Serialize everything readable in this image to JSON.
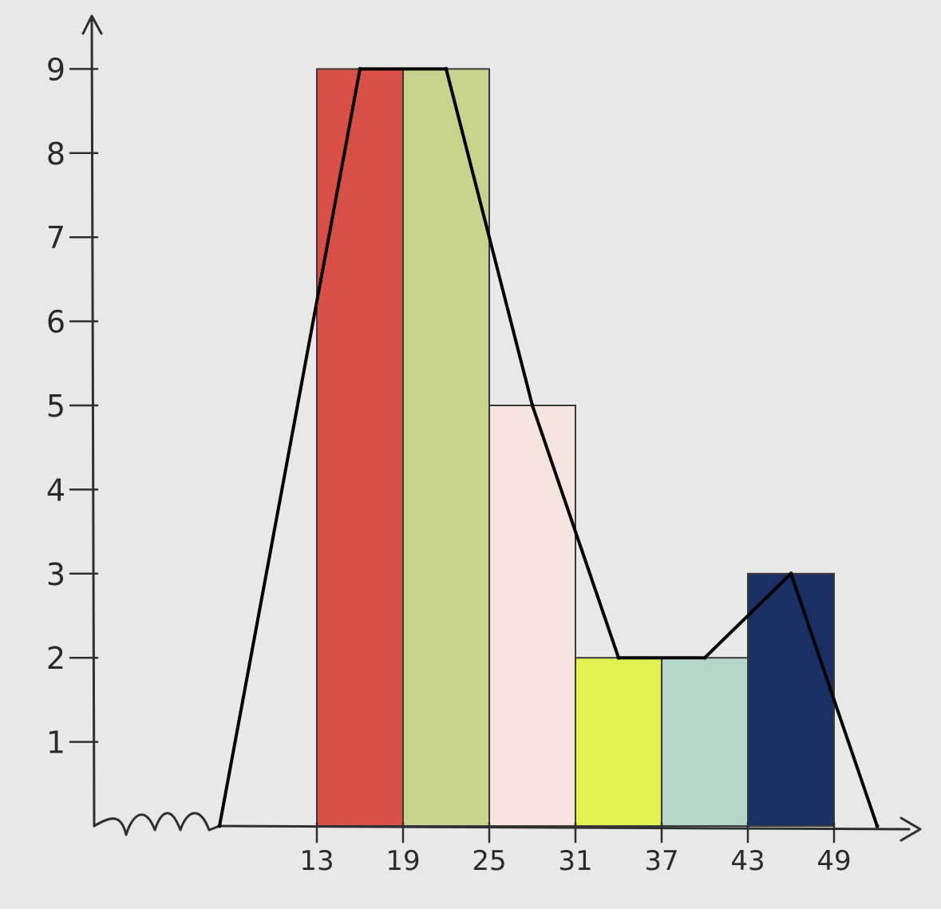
{
  "chart_data": {
    "type": "bar",
    "bins": [
      {
        "category": "13-19",
        "start": 13,
        "end": 19,
        "value": 9,
        "color": "#d94f45"
      },
      {
        "category": "19-25",
        "start": 19,
        "end": 25,
        "value": 9,
        "color": "#c7d38d"
      },
      {
        "category": "25-31",
        "start": 25,
        "end": 31,
        "value": 5,
        "color": "#f6e3dd"
      },
      {
        "category": "31-37",
        "start": 31,
        "end": 37,
        "value": 2,
        "color": "#e1f14f"
      },
      {
        "category": "37-43",
        "start": 37,
        "end": 43,
        "value": 2,
        "color": "#b6d6c9"
      },
      {
        "category": "43-49",
        "start": 43,
        "end": 49,
        "value": 3,
        "color": "#1a2f63"
      }
    ],
    "frequency_polygon": [
      {
        "x": 10,
        "y": 0
      },
      {
        "x": 16,
        "y": 9
      },
      {
        "x": 22,
        "y": 9
      },
      {
        "x": 28,
        "y": 5
      },
      {
        "x": 34,
        "y": 2
      },
      {
        "x": 40,
        "y": 2
      },
      {
        "x": 46,
        "y": 3
      },
      {
        "x": 52,
        "y": 0
      }
    ],
    "x_ticks": [
      "13",
      "19",
      "25",
      "31",
      "37",
      "43",
      "49"
    ],
    "y_ticks": [
      "1",
      "2",
      "3",
      "4",
      "5",
      "6",
      "7",
      "8",
      "9"
    ],
    "ylim": [
      0,
      9
    ],
    "x_axis_break": true,
    "legend": "none",
    "title": "",
    "xlabel": "",
    "ylabel": "",
    "colors": {
      "background": "#e8e8e8",
      "axis": "#2f2f2f",
      "polygon": "#000000"
    }
  }
}
